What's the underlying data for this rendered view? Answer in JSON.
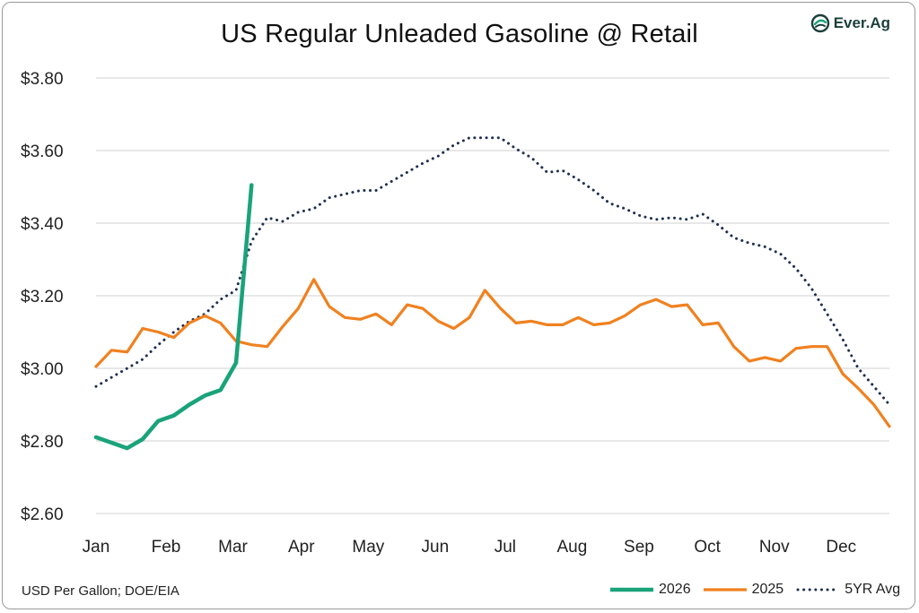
{
  "header": {
    "title": "US Regular Unleaded Gasoline @ Retail",
    "logo_text": "Ever.Ag"
  },
  "footer": {
    "source": "USD Per Gallon; DOE/EIA"
  },
  "colors": {
    "s2026": "#1aa37a",
    "s2025": "#f0811f",
    "s5yr": "#1f3050",
    "grid": "#d9d9d9",
    "logo": "#1c3f3a",
    "logo_accent": "#1aa37a"
  },
  "chart_data": {
    "type": "line",
    "title": "US Regular Unleaded Gasoline @ Retail",
    "xlabel": "",
    "ylabel": "",
    "x_unit": "week of year",
    "x_range": [
      1,
      52
    ],
    "ylim": [
      2.6,
      3.8
    ],
    "yticks": [
      2.6,
      2.8,
      3.0,
      3.2,
      3.4,
      3.6,
      3.8
    ],
    "ytick_labels": [
      "$2.60",
      "$2.80",
      "$3.00",
      "$3.20",
      "$3.40",
      "$3.60",
      "$3.80"
    ],
    "month_labels": [
      "Jan",
      "Feb",
      "Mar",
      "Apr",
      "May",
      "Jun",
      "Jul",
      "Aug",
      "Sep",
      "Oct",
      "Nov",
      "Dec"
    ],
    "month_positions": [
      1,
      5.5,
      9.8,
      14.2,
      18.5,
      22.8,
      27.3,
      31.6,
      35.9,
      40.3,
      44.6,
      48.9
    ],
    "grid": "horizontal",
    "legend_position": "bottom-right",
    "series": [
      {
        "name": "2026",
        "style": "solid-thick",
        "x": [
          1,
          2,
          3,
          4,
          5,
          6,
          7,
          8,
          9,
          10,
          11
        ],
        "values": [
          2.81,
          2.795,
          2.78,
          2.805,
          2.855,
          2.87,
          2.9,
          2.925,
          2.94,
          3.015,
          3.505
        ]
      },
      {
        "name": "2025",
        "style": "solid",
        "x": [
          1,
          2,
          3,
          4,
          5,
          6,
          7,
          8,
          9,
          10,
          11,
          12,
          13,
          14,
          15,
          16,
          17,
          18,
          19,
          20,
          21,
          22,
          23,
          24,
          25,
          26,
          27,
          28,
          29,
          30,
          31,
          32,
          33,
          34,
          35,
          36,
          37,
          38,
          39,
          40,
          41,
          42,
          43,
          44,
          45,
          46,
          47,
          48,
          49,
          50,
          51,
          52
        ],
        "values": [
          3.005,
          3.05,
          3.045,
          3.11,
          3.1,
          3.085,
          3.125,
          3.145,
          3.125,
          3.075,
          3.065,
          3.06,
          3.115,
          3.165,
          3.245,
          3.17,
          3.14,
          3.135,
          3.15,
          3.12,
          3.175,
          3.165,
          3.13,
          3.11,
          3.14,
          3.215,
          3.165,
          3.125,
          3.13,
          3.12,
          3.12,
          3.14,
          3.12,
          3.125,
          3.145,
          3.175,
          3.19,
          3.17,
          3.175,
          3.12,
          3.125,
          3.06,
          3.02,
          3.03,
          3.02,
          3.055,
          3.06,
          3.06,
          2.985,
          2.945,
          2.9,
          2.84
        ]
      },
      {
        "name": "5YR Avg",
        "style": "dotted",
        "x": [
          1,
          2,
          3,
          4,
          5,
          6,
          7,
          8,
          9,
          10,
          11,
          12,
          13,
          14,
          15,
          16,
          17,
          18,
          19,
          20,
          21,
          22,
          23,
          24,
          25,
          26,
          27,
          28,
          29,
          30,
          31,
          32,
          33,
          34,
          35,
          36,
          37,
          38,
          39,
          40,
          41,
          42,
          43,
          44,
          45,
          46,
          47,
          48,
          49,
          50,
          51,
          52
        ],
        "values": [
          2.95,
          2.975,
          3.0,
          3.025,
          3.065,
          3.1,
          3.13,
          3.15,
          3.19,
          3.215,
          3.35,
          3.415,
          3.405,
          3.43,
          3.44,
          3.47,
          3.48,
          3.49,
          3.49,
          3.515,
          3.54,
          3.565,
          3.585,
          3.615,
          3.635,
          3.635,
          3.635,
          3.605,
          3.58,
          3.54,
          3.545,
          3.52,
          3.49,
          3.455,
          3.44,
          3.42,
          3.41,
          3.415,
          3.41,
          3.425,
          3.395,
          3.36,
          3.345,
          3.335,
          3.315,
          3.275,
          3.22,
          3.15,
          3.08,
          3.0,
          2.95,
          2.9
        ]
      }
    ]
  }
}
